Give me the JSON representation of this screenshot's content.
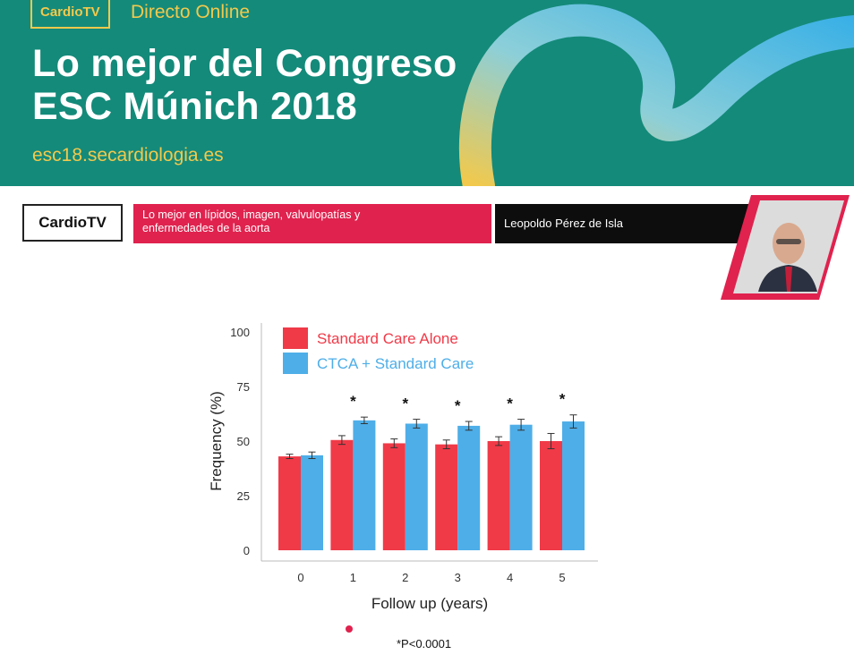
{
  "banner": {
    "badge": "CardioTV",
    "live_label": "Directo Online",
    "headline_line1": "Lo mejor del Congreso",
    "headline_line2": "ESC Múnich 2018",
    "url": "esc18.secardiologia.es"
  },
  "lower_third": {
    "brand": "CardioTV",
    "topic_line1": "Lo mejor en lípidos, imagen, valvulopatías y",
    "topic_line2": "enfermedades de la aorta",
    "speaker": "Leopoldo Pérez de Isla"
  },
  "colors": {
    "banner_bg": "#148a7a",
    "accent_yellow": "#f2c94c",
    "topic_red": "#e0224e",
    "series_red": "#f03a48",
    "series_blue": "#4eaee8"
  },
  "chart_data": {
    "type": "bar",
    "title": "",
    "xlabel": "Follow up (years)",
    "ylabel": "Frequency (%)",
    "ylim": [
      0,
      100
    ],
    "yticks": [
      0,
      25,
      50,
      75,
      100
    ],
    "categories": [
      "0",
      "1",
      "2",
      "3",
      "4",
      "5"
    ],
    "series": [
      {
        "name": "Standard Care Alone",
        "color": "#f03a48",
        "values": [
          43,
          50.5,
          49,
          48.5,
          50,
          50
        ],
        "errors": [
          1,
          2,
          2,
          2,
          2,
          3.5
        ]
      },
      {
        "name": "CTCA + Standard Care",
        "color": "#4eaee8",
        "values": [
          43.5,
          59.5,
          58,
          57,
          57.5,
          59
        ],
        "errors": [
          1.5,
          1.5,
          2,
          2,
          2.5,
          3
        ]
      }
    ],
    "significant": [
      "",
      "*",
      "*",
      "*",
      "*",
      "*"
    ],
    "legend_position": "top-left",
    "grid": false,
    "footnote": "*P<0.0001"
  }
}
